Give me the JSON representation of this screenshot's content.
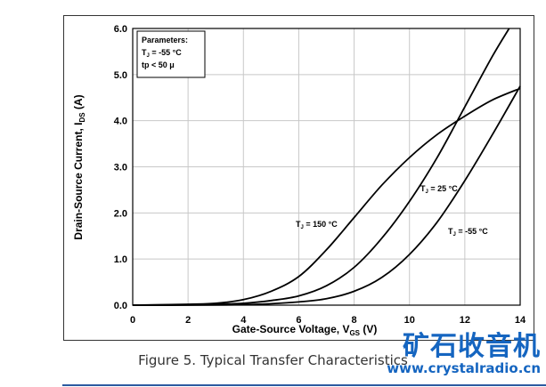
{
  "chart_data": {
    "type": "line",
    "title": "",
    "xlabel": "Gate-Source Voltage, V",
    "xlabel_sub": "GS",
    "xlabel_unit": " (V)",
    "ylabel": "Drain-Source Current, I",
    "ylabel_sub": "DS",
    "ylabel_unit": " (A)",
    "xlim": [
      0,
      14
    ],
    "ylim": [
      0,
      6
    ],
    "x_ticks": [
      "0",
      "2",
      "4",
      "6",
      "8",
      "10",
      "12",
      "14"
    ],
    "y_ticks": [
      "0.0",
      "1.0",
      "2.0",
      "3.0",
      "4.0",
      "5.0",
      "6.0"
    ],
    "grid": true,
    "series": [
      {
        "name": "T_J = 150 °C",
        "x": [
          0,
          2,
          3,
          4,
          5,
          6,
          7,
          8,
          9,
          10,
          11,
          12,
          13,
          14
        ],
        "y": [
          0.0,
          0.02,
          0.04,
          0.12,
          0.3,
          0.62,
          1.2,
          1.9,
          2.6,
          3.2,
          3.7,
          4.1,
          4.45,
          4.7
        ]
      },
      {
        "name": "T_J = 25 °C",
        "x": [
          0,
          2,
          3,
          4,
          5,
          6,
          7,
          8,
          9,
          10,
          11,
          12,
          13,
          13.6
        ],
        "y": [
          0.0,
          0.01,
          0.02,
          0.04,
          0.1,
          0.2,
          0.42,
          0.82,
          1.45,
          2.25,
          3.2,
          4.3,
          5.4,
          6.0
        ]
      },
      {
        "name": "T_J = -55 °C",
        "x": [
          0,
          2,
          4,
          5,
          6,
          7,
          8,
          9,
          10,
          11,
          12,
          13,
          14
        ],
        "y": [
          0.0,
          0.0,
          0.01,
          0.03,
          0.07,
          0.14,
          0.3,
          0.6,
          1.1,
          1.8,
          2.7,
          3.7,
          4.75
        ]
      }
    ],
    "annotations": [
      {
        "base": "T",
        "sub": "J",
        "rest": " = 150 °C"
      },
      {
        "base": "T",
        "sub": "J",
        "rest": " = 25 °C"
      },
      {
        "base": "T",
        "sub": "J",
        "rest": " = -55 °C"
      }
    ],
    "parameters": {
      "title": "Parameters:",
      "line1_base": "T",
      "line1_sub": "J",
      "line1_rest": " = -55 °C",
      "line2": "tp < 50 μ"
    }
  },
  "caption": "Figure 5. Typical Transfer Characteristics",
  "watermark": {
    "title": "矿石收音机",
    "url": "www.crystalradio.cn"
  },
  "colors": {
    "line": "#000000",
    "grid": "#c8c8c8",
    "watermark": "#1565c0"
  }
}
